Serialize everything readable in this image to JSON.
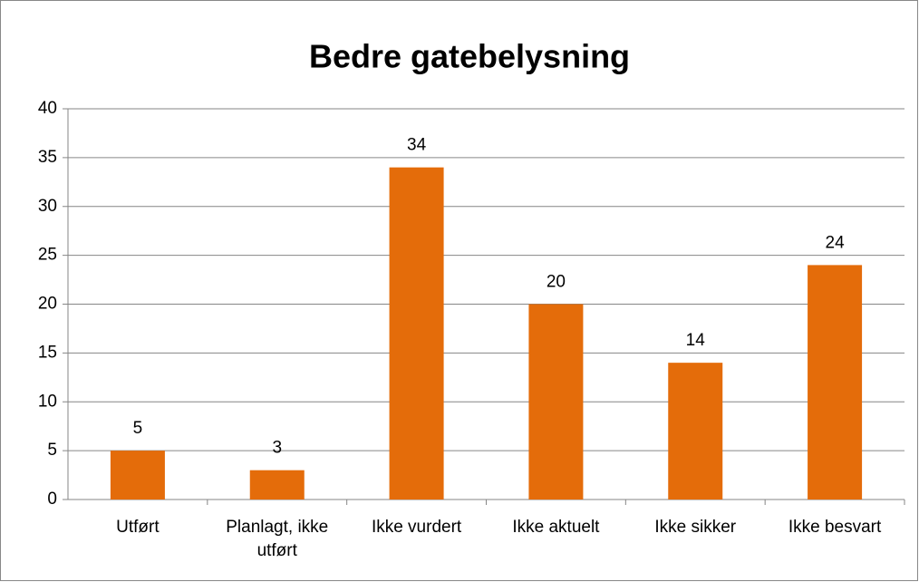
{
  "chart_data": {
    "type": "bar",
    "title": "Bedre gatebelysning",
    "categories": [
      "Utført",
      "Planlagt, ikke utført",
      "Ikke vurdert",
      "Ikke aktuelt",
      "Ikke sikker",
      "Ikke besvart"
    ],
    "values": [
      5,
      3,
      34,
      20,
      14,
      24
    ],
    "color": "#e46c0a",
    "ylim": [
      0,
      40
    ],
    "yticks": [
      0,
      5,
      10,
      15,
      20,
      25,
      30,
      35,
      40
    ],
    "grid": true
  }
}
